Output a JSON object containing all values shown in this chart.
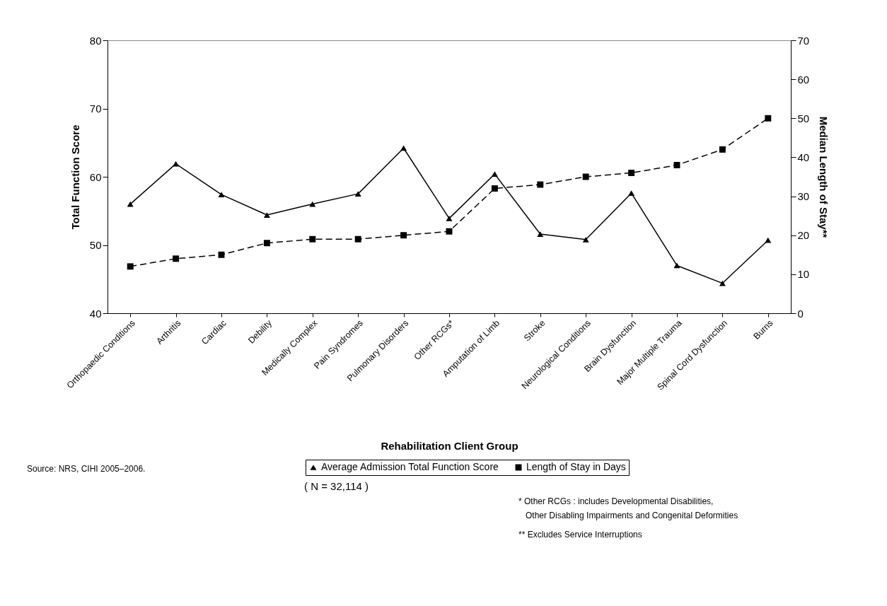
{
  "chart_data": {
    "type": "line",
    "xlabel": "Rehabilitation Client Group",
    "ylabel": "Total Function Score",
    "y2label": "Median Length of Stay**",
    "categories": [
      "Orthopaedic Conditions",
      "Arthritis",
      "Cardiac",
      "Debility",
      "Medically Complex",
      "Pain Syndromes",
      "Pulmonary Disorders",
      "Other RCGs*",
      "Amputation of Limb",
      "Stroke",
      "Neurological Conditions",
      "Brain Dysfunction",
      "Major Multiple Trauma",
      "Spinal Cord Dysfunction",
      "Burns"
    ],
    "series": [
      {
        "name": "Average Admission Total Function Score",
        "color": "#000000",
        "marker": "triangle",
        "line_style": "solid",
        "values": [
          56,
          61.9,
          57.4,
          54.4,
          56,
          57.5,
          64.2,
          53.9,
          60.4,
          51.6,
          50.8,
          57.6,
          47,
          44.4,
          50.7
        ]
      },
      {
        "name": "Length of Stay in Days",
        "color": "#000000",
        "marker": "square",
        "line_style": "dashed",
        "axis": "y2",
        "values": [
          12,
          14,
          15,
          18,
          19,
          19,
          20,
          21,
          32,
          33,
          35,
          36,
          38,
          42,
          50
        ]
      }
    ],
    "ylim": [
      40,
      80
    ],
    "yticks": [
      40,
      50,
      60,
      70,
      80
    ],
    "y2lim": [
      0,
      70
    ],
    "y2ticks": [
      0,
      10,
      20,
      30,
      40,
      50,
      60,
      70
    ],
    "grid": false,
    "legend": "bottom",
    "annotations": [
      "( N = 32,114 )",
      "* Other RCGs : includes Developmental Disabilities,\n   Other Disabling Impairments and Congenital Deformities",
      "** Excludes Service Interruptions",
      "Source: NRS, CIHI 2005–2006."
    ]
  }
}
